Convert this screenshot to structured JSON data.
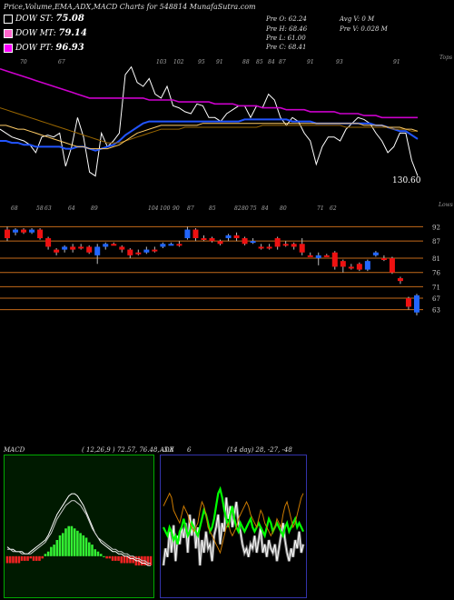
{
  "header": {
    "title": "Price,Volume,EMA,ADX,MACD Charts for 548814  MunafaSutra.com"
  },
  "dow": [
    {
      "label": "DOW ST:",
      "value": "75.08",
      "color": "#000000"
    },
    {
      "label": "DOW MT:",
      "value": "79.14",
      "color": "#ff66cc"
    },
    {
      "label": "DOW PT:",
      "value": "96.93",
      "color": "#ff00ff"
    }
  ],
  "ohlc": {
    "open": "Pre   O: 62.24",
    "high": "Pre   H: 68.46",
    "low": "Pre   L: 61.00",
    "close": "Pre   C: 68.41",
    "avg_vol": "Avg V: 0   M",
    "prev_vol": "Pre   V: 0.028  M"
  },
  "chart_data": [
    {
      "type": "line",
      "panel": "price-ema",
      "top_label": "Tops",
      "last_price_label": "130.60",
      "top_numbers": [
        "70",
        "67",
        "103",
        "102",
        "95",
        "91",
        "88",
        "85",
        "84",
        "87",
        "91",
        "93",
        "91"
      ],
      "series": [
        {
          "color": "#ffffff",
          "values": [
            154,
            152,
            150,
            149,
            148,
            146,
            142,
            150,
            151,
            150,
            152,
            135,
            145,
            160,
            150,
            132,
            130,
            152,
            145,
            148,
            152,
            182,
            186,
            178,
            176,
            180,
            172,
            170,
            176,
            166,
            165,
            163,
            162,
            167,
            166,
            160,
            160,
            158,
            162,
            164,
            166,
            166,
            160,
            166,
            165,
            172,
            169,
            160,
            156,
            160,
            158,
            152,
            148,
            136,
            145,
            150,
            150,
            148,
            154,
            157,
            160,
            159,
            157,
            152,
            148,
            142,
            145,
            152,
            152,
            138,
            130
          ]
        },
        {
          "color": "#2255ff",
          "values": [
            148,
            148,
            147,
            147,
            146,
            146,
            145,
            145,
            145,
            145,
            145,
            144,
            144,
            145,
            145,
            144,
            143,
            144,
            145,
            146,
            148,
            151,
            153,
            155,
            157,
            158,
            158,
            158,
            158,
            158,
            158,
            158,
            158,
            158,
            158,
            158,
            158,
            158,
            158,
            158,
            158,
            159,
            159,
            159,
            159,
            159,
            159,
            159,
            159,
            158,
            158,
            158,
            158,
            157,
            157,
            157,
            157,
            157,
            157,
            157,
            157,
            157,
            157,
            156,
            156,
            155,
            154,
            153,
            153,
            151,
            149
          ]
        },
        {
          "color": "#cc00cc",
          "values": [
            185,
            184,
            183,
            182,
            181,
            180,
            179,
            178,
            177,
            176,
            175,
            174,
            173,
            172,
            171,
            170,
            170,
            170,
            170,
            170,
            170,
            170,
            170,
            170,
            170,
            169,
            169,
            169,
            169,
            169,
            168,
            168,
            168,
            168,
            168,
            168,
            167,
            167,
            167,
            167,
            166,
            166,
            166,
            166,
            165,
            165,
            165,
            165,
            164,
            164,
            164,
            164,
            163,
            163,
            163,
            163,
            163,
            162,
            162,
            162,
            162,
            161,
            161,
            161,
            160,
            160,
            160,
            160,
            160,
            160,
            160
          ]
        },
        {
          "color": "#996600",
          "values": [
            165,
            164,
            163,
            162,
            161,
            160,
            159,
            158,
            157,
            156,
            155,
            154,
            153,
            152,
            151,
            150,
            149,
            148,
            147,
            147,
            147,
            148,
            149,
            150,
            151,
            152,
            153,
            154,
            154,
            154,
            154,
            155,
            155,
            155,
            155,
            155,
            155,
            155,
            155,
            155,
            155,
            155,
            155,
            155,
            156,
            156,
            156,
            156,
            156,
            156,
            156,
            156,
            156,
            156,
            156,
            156,
            156,
            156,
            155,
            155,
            155,
            155,
            155,
            155,
            155,
            155,
            154,
            154,
            154,
            153,
            153
          ]
        },
        {
          "color": "#ffcc66",
          "values": [
            156,
            156,
            155,
            154,
            154,
            153,
            152,
            151,
            150,
            149,
            148,
            147,
            146,
            145,
            145,
            144,
            144,
            144,
            144,
            145,
            146,
            148,
            150,
            152,
            153,
            154,
            155,
            156,
            156,
            156,
            156,
            156,
            156,
            156,
            157,
            157,
            157,
            157,
            157,
            157,
            157,
            157,
            157,
            157,
            157,
            157,
            157,
            157,
            157,
            157,
            157,
            157,
            157,
            157,
            157,
            157,
            157,
            157,
            157,
            157,
            157,
            156,
            156,
            156,
            156,
            155,
            155,
            155,
            154,
            154,
            153
          ]
        }
      ]
    },
    {
      "type": "candlestick",
      "panel": "candles",
      "top_label": "Lows",
      "top_numbers": [
        "68",
        "58",
        "63",
        "64",
        "89",
        "104",
        "100",
        "90",
        "87",
        "85",
        "82",
        "80",
        "75",
        "84",
        "80",
        "71",
        "62"
      ],
      "y_ticks": [
        "92",
        "87",
        "81",
        "76",
        "71",
        "67",
        "63"
      ],
      "candles": [
        {
          "o": 91,
          "c": 88,
          "h": 92,
          "l": 87,
          "bull": false
        },
        {
          "o": 90,
          "c": 91,
          "h": 91.5,
          "l": 89,
          "bull": true
        },
        {
          "o": 91,
          "c": 90,
          "h": 91.5,
          "l": 89.5,
          "bull": false
        },
        {
          "o": 90,
          "c": 91,
          "h": 91.5,
          "l": 89.5,
          "bull": true
        },
        {
          "o": 91,
          "c": 88,
          "h": 91.5,
          "l": 87.5,
          "bull": false
        },
        {
          "o": 88,
          "c": 85,
          "h": 88.5,
          "l": 84,
          "bull": false
        },
        {
          "o": 84,
          "c": 83,
          "h": 84.5,
          "l": 82,
          "bull": false
        },
        {
          "o": 84,
          "c": 85,
          "h": 85.5,
          "l": 83,
          "bull": true
        },
        {
          "o": 85,
          "c": 84,
          "h": 86,
          "l": 83,
          "bull": false
        },
        {
          "o": 85,
          "c": 85,
          "h": 86,
          "l": 84,
          "bull": false
        },
        {
          "o": 85,
          "c": 83,
          "h": 85.5,
          "l": 82.5,
          "bull": false
        },
        {
          "o": 82,
          "c": 85,
          "h": 86,
          "l": 79,
          "bull": true
        },
        {
          "o": 85,
          "c": 86,
          "h": 86.5,
          "l": 84,
          "bull": true
        },
        {
          "o": 86,
          "c": 86,
          "h": 86.5,
          "l": 85.5,
          "bull": false
        },
        {
          "o": 85,
          "c": 84,
          "h": 85.5,
          "l": 83,
          "bull": false
        },
        {
          "o": 84,
          "c": 82,
          "h": 84.5,
          "l": 81,
          "bull": false
        },
        {
          "o": 83,
          "c": 83,
          "h": 84,
          "l": 82,
          "bull": false
        },
        {
          "o": 83,
          "c": 84,
          "h": 85,
          "l": 82.5,
          "bull": true
        },
        {
          "o": 84,
          "c": 84,
          "h": 85,
          "l": 83,
          "bull": false
        },
        {
          "o": 85,
          "c": 86,
          "h": 86.5,
          "l": 84.5,
          "bull": true
        },
        {
          "o": 86,
          "c": 86,
          "h": 86.5,
          "l": 85.5,
          "bull": true
        },
        {
          "o": 86,
          "c": 86,
          "h": 87,
          "l": 85,
          "bull": false
        },
        {
          "o": 88,
          "c": 91,
          "h": 92,
          "l": 87.5,
          "bull": true
        },
        {
          "o": 91,
          "c": 88,
          "h": 91.5,
          "l": 87,
          "bull": false
        },
        {
          "o": 88,
          "c": 88,
          "h": 89,
          "l": 87,
          "bull": false
        },
        {
          "o": 88,
          "c": 87,
          "h": 88.5,
          "l": 86.5,
          "bull": false
        },
        {
          "o": 87,
          "c": 86,
          "h": 87.5,
          "l": 85.5,
          "bull": false
        },
        {
          "o": 88,
          "c": 89,
          "h": 89.5,
          "l": 87,
          "bull": true
        },
        {
          "o": 89,
          "c": 88,
          "h": 90,
          "l": 87,
          "bull": false
        },
        {
          "o": 88,
          "c": 86,
          "h": 88.5,
          "l": 85.5,
          "bull": false
        },
        {
          "o": 87,
          "c": 87,
          "h": 88,
          "l": 86,
          "bull": true
        },
        {
          "o": 85,
          "c": 85,
          "h": 86,
          "l": 84,
          "bull": false
        },
        {
          "o": 85,
          "c": 85,
          "h": 86,
          "l": 84,
          "bull": false
        },
        {
          "o": 88,
          "c": 85,
          "h": 88.5,
          "l": 84,
          "bull": false
        },
        {
          "o": 86,
          "c": 86,
          "h": 87,
          "l": 85,
          "bull": false
        },
        {
          "o": 86,
          "c": 85,
          "h": 86.5,
          "l": 84,
          "bull": false
        },
        {
          "o": 86,
          "c": 83,
          "h": 88,
          "l": 82,
          "bull": false
        },
        {
          "o": 82,
          "c": 82,
          "h": 83,
          "l": 81.5,
          "bull": false
        },
        {
          "o": 82,
          "c": 81,
          "h": 83,
          "l": 78.5,
          "bull": true
        },
        {
          "o": 82,
          "c": 82,
          "h": 82.5,
          "l": 81.5,
          "bull": false
        },
        {
          "o": 83,
          "c": 78,
          "h": 83.5,
          "l": 77,
          "bull": false
        },
        {
          "o": 80,
          "c": 78,
          "h": 80.5,
          "l": 76,
          "bull": false
        },
        {
          "o": 78,
          "c": 78,
          "h": 79,
          "l": 77,
          "bull": false
        },
        {
          "o": 79,
          "c": 77,
          "h": 79.5,
          "l": 76.5,
          "bull": false
        },
        {
          "o": 77,
          "c": 80,
          "h": 80.5,
          "l": 76.5,
          "bull": true
        },
        {
          "o": 82,
          "c": 83,
          "h": 83.5,
          "l": 81.5,
          "bull": true
        },
        {
          "o": 81,
          "c": 81,
          "h": 82,
          "l": 80,
          "bull": false
        },
        {
          "o": 81,
          "c": 76,
          "h": 81.5,
          "l": 75.5,
          "bull": false
        },
        {
          "o": 74,
          "c": 73,
          "h": 74.5,
          "l": 72,
          "bull": false
        },
        {
          "o": 67,
          "c": 64,
          "h": 67.5,
          "l": 63,
          "bull": false
        },
        {
          "o": 62,
          "c": 68,
          "h": 68.5,
          "l": 61,
          "bull": true
        }
      ]
    },
    {
      "type": "area",
      "panel": "macd",
      "label": "MACD",
      "params": "( 12,26,9 ) 72.57, 76.48, -3.8",
      "histogram": [
        -3,
        -3,
        -3,
        -3,
        -3,
        -2,
        -2,
        -2,
        -1,
        -2,
        -2,
        -2,
        -1,
        1,
        2,
        4,
        5,
        7,
        9,
        10,
        12,
        13,
        13,
        12,
        11,
        10,
        9,
        8,
        6,
        5,
        3,
        2,
        1,
        0,
        -1,
        -1,
        -2,
        -2,
        -2,
        -3,
        -3,
        -3,
        -3,
        -3,
        -4,
        -4,
        -4,
        -4,
        -4,
        -4
      ],
      "macd_line": [
        4,
        3,
        3,
        2,
        2,
        2,
        1,
        1,
        2,
        3,
        4,
        5,
        6,
        7,
        9,
        12,
        15,
        18,
        20,
        22,
        24,
        26,
        27,
        27,
        26,
        24,
        22,
        19,
        16,
        13,
        10,
        8,
        6,
        5,
        4,
        3,
        2,
        2,
        1,
        1,
        0,
        0,
        -1,
        -1,
        -2,
        -2,
        -3,
        -3,
        -4,
        -4
      ],
      "signal_line": [
        3,
        3,
        2,
        2,
        2,
        1,
        1,
        1,
        1,
        2,
        3,
        4,
        5,
        6,
        8,
        10,
        13,
        16,
        18,
        20,
        22,
        23,
        24,
        24,
        23,
        22,
        20,
        18,
        15,
        12,
        10,
        8,
        7,
        6,
        5,
        4,
        3,
        3,
        2,
        2,
        1,
        1,
        0,
        0,
        -1,
        -1,
        -2,
        -2,
        -3,
        -3
      ]
    },
    {
      "type": "line",
      "panel": "adx",
      "label": "ADX",
      "value": "6",
      "params": "(14 day) 28, -27, -48",
      "series": [
        {
          "name": "ADX",
          "color": "#ffffff",
          "values": [
            12,
            20,
            16,
            28,
            18,
            31,
            14,
            26,
            22,
            30,
            25,
            32,
            18,
            36,
            26,
            34,
            20,
            30,
            12,
            24,
            18,
            28,
            20,
            22,
            14,
            26,
            30,
            36,
            22,
            32,
            28,
            44,
            34,
            40,
            30,
            36,
            42,
            32,
            28,
            22,
            18,
            20,
            16,
            22,
            20,
            26,
            18,
            24,
            30,
            18,
            22,
            16,
            24,
            20,
            18,
            22,
            14,
            20,
            26,
            32,
            24,
            18,
            14,
            20,
            16,
            24,
            20,
            28,
            18,
            22
          ]
        },
        {
          "name": "+DI",
          "color": "#00ff00",
          "values": [
            30,
            28,
            26,
            30,
            28,
            24,
            26,
            22,
            28,
            30,
            34,
            30,
            26,
            28,
            32,
            30,
            28,
            26,
            30,
            34,
            38,
            36,
            32,
            28,
            30,
            34,
            40,
            46,
            48,
            44,
            38,
            34,
            30,
            36,
            40,
            34,
            30,
            28,
            32,
            30,
            28,
            30,
            32,
            34,
            30,
            28,
            30,
            32,
            30,
            28,
            26,
            30,
            34,
            32,
            28,
            30,
            32,
            30,
            28,
            26,
            30,
            32,
            28,
            30,
            32,
            34,
            30,
            32,
            30,
            28
          ]
        },
        {
          "name": "-DI",
          "color": "#cc7a00",
          "values": [
            40,
            42,
            44,
            46,
            44,
            38,
            36,
            34,
            32,
            36,
            40,
            38,
            36,
            32,
            30,
            28,
            30,
            32,
            38,
            42,
            40,
            36,
            30,
            28,
            26,
            24,
            22,
            20,
            18,
            22,
            26,
            30,
            32,
            28,
            26,
            28,
            30,
            34,
            36,
            38,
            40,
            42,
            40,
            36,
            34,
            32,
            30,
            34,
            38,
            36,
            32,
            30,
            28,
            26,
            28,
            30,
            34,
            32,
            30,
            36,
            40,
            42,
            38,
            34,
            30,
            32,
            36,
            40,
            44,
            46
          ]
        }
      ]
    }
  ]
}
